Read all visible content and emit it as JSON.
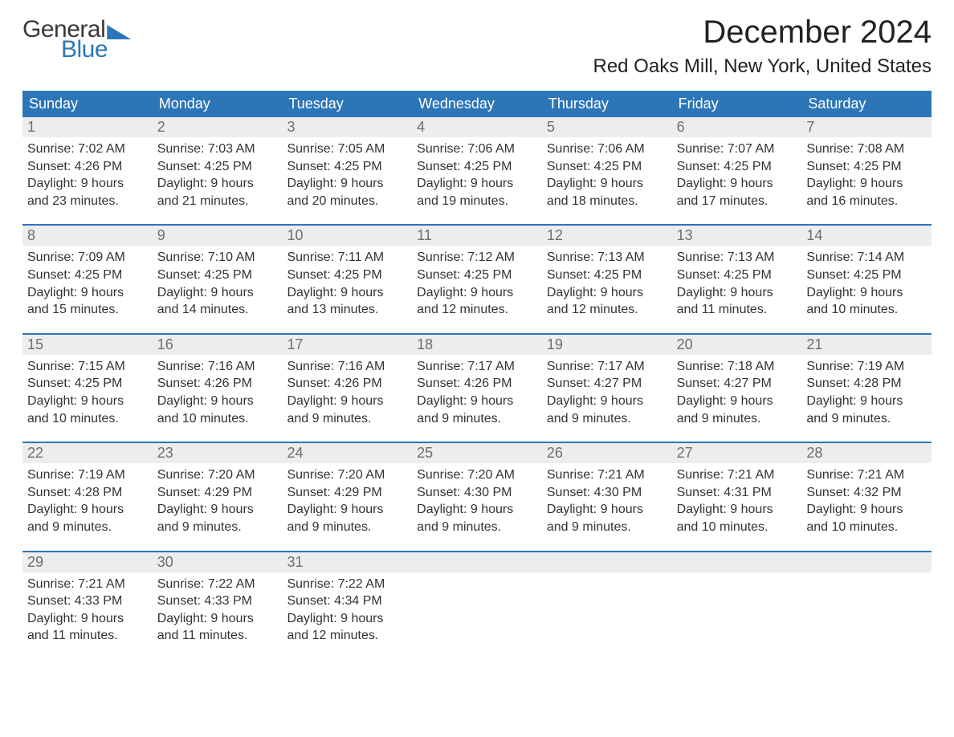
{
  "logo": {
    "word1": "General",
    "word2": "Blue"
  },
  "header": {
    "month_title": "December 2024",
    "location": "Red Oaks Mill, New York, United States"
  },
  "colors": {
    "brand_blue": "#2c76b8",
    "row_gray": "#ededed",
    "text_dark": "#333333",
    "daynum_gray": "#6e6e6e",
    "white": "#ffffff"
  },
  "typography": {
    "month_title_fontsize": 40,
    "location_fontsize": 24,
    "dow_fontsize": 18,
    "daynum_fontsize": 18,
    "body_fontsize": 16
  },
  "days_of_week": [
    "Sunday",
    "Monday",
    "Tuesday",
    "Wednesday",
    "Thursday",
    "Friday",
    "Saturday"
  ],
  "weeks": [
    [
      {
        "n": "1",
        "sunrise": "Sunrise: 7:02 AM",
        "sunset": "Sunset: 4:26 PM",
        "dl1": "Daylight: 9 hours",
        "dl2": "and 23 minutes."
      },
      {
        "n": "2",
        "sunrise": "Sunrise: 7:03 AM",
        "sunset": "Sunset: 4:25 PM",
        "dl1": "Daylight: 9 hours",
        "dl2": "and 21 minutes."
      },
      {
        "n": "3",
        "sunrise": "Sunrise: 7:05 AM",
        "sunset": "Sunset: 4:25 PM",
        "dl1": "Daylight: 9 hours",
        "dl2": "and 20 minutes."
      },
      {
        "n": "4",
        "sunrise": "Sunrise: 7:06 AM",
        "sunset": "Sunset: 4:25 PM",
        "dl1": "Daylight: 9 hours",
        "dl2": "and 19 minutes."
      },
      {
        "n": "5",
        "sunrise": "Sunrise: 7:06 AM",
        "sunset": "Sunset: 4:25 PM",
        "dl1": "Daylight: 9 hours",
        "dl2": "and 18 minutes."
      },
      {
        "n": "6",
        "sunrise": "Sunrise: 7:07 AM",
        "sunset": "Sunset: 4:25 PM",
        "dl1": "Daylight: 9 hours",
        "dl2": "and 17 minutes."
      },
      {
        "n": "7",
        "sunrise": "Sunrise: 7:08 AM",
        "sunset": "Sunset: 4:25 PM",
        "dl1": "Daylight: 9 hours",
        "dl2": "and 16 minutes."
      }
    ],
    [
      {
        "n": "8",
        "sunrise": "Sunrise: 7:09 AM",
        "sunset": "Sunset: 4:25 PM",
        "dl1": "Daylight: 9 hours",
        "dl2": "and 15 minutes."
      },
      {
        "n": "9",
        "sunrise": "Sunrise: 7:10 AM",
        "sunset": "Sunset: 4:25 PM",
        "dl1": "Daylight: 9 hours",
        "dl2": "and 14 minutes."
      },
      {
        "n": "10",
        "sunrise": "Sunrise: 7:11 AM",
        "sunset": "Sunset: 4:25 PM",
        "dl1": "Daylight: 9 hours",
        "dl2": "and 13 minutes."
      },
      {
        "n": "11",
        "sunrise": "Sunrise: 7:12 AM",
        "sunset": "Sunset: 4:25 PM",
        "dl1": "Daylight: 9 hours",
        "dl2": "and 12 minutes."
      },
      {
        "n": "12",
        "sunrise": "Sunrise: 7:13 AM",
        "sunset": "Sunset: 4:25 PM",
        "dl1": "Daylight: 9 hours",
        "dl2": "and 12 minutes."
      },
      {
        "n": "13",
        "sunrise": "Sunrise: 7:13 AM",
        "sunset": "Sunset: 4:25 PM",
        "dl1": "Daylight: 9 hours",
        "dl2": "and 11 minutes."
      },
      {
        "n": "14",
        "sunrise": "Sunrise: 7:14 AM",
        "sunset": "Sunset: 4:25 PM",
        "dl1": "Daylight: 9 hours",
        "dl2": "and 10 minutes."
      }
    ],
    [
      {
        "n": "15",
        "sunrise": "Sunrise: 7:15 AM",
        "sunset": "Sunset: 4:25 PM",
        "dl1": "Daylight: 9 hours",
        "dl2": "and 10 minutes."
      },
      {
        "n": "16",
        "sunrise": "Sunrise: 7:16 AM",
        "sunset": "Sunset: 4:26 PM",
        "dl1": "Daylight: 9 hours",
        "dl2": "and 10 minutes."
      },
      {
        "n": "17",
        "sunrise": "Sunrise: 7:16 AM",
        "sunset": "Sunset: 4:26 PM",
        "dl1": "Daylight: 9 hours",
        "dl2": "and 9 minutes."
      },
      {
        "n": "18",
        "sunrise": "Sunrise: 7:17 AM",
        "sunset": "Sunset: 4:26 PM",
        "dl1": "Daylight: 9 hours",
        "dl2": "and 9 minutes."
      },
      {
        "n": "19",
        "sunrise": "Sunrise: 7:17 AM",
        "sunset": "Sunset: 4:27 PM",
        "dl1": "Daylight: 9 hours",
        "dl2": "and 9 minutes."
      },
      {
        "n": "20",
        "sunrise": "Sunrise: 7:18 AM",
        "sunset": "Sunset: 4:27 PM",
        "dl1": "Daylight: 9 hours",
        "dl2": "and 9 minutes."
      },
      {
        "n": "21",
        "sunrise": "Sunrise: 7:19 AM",
        "sunset": "Sunset: 4:28 PM",
        "dl1": "Daylight: 9 hours",
        "dl2": "and 9 minutes."
      }
    ],
    [
      {
        "n": "22",
        "sunrise": "Sunrise: 7:19 AM",
        "sunset": "Sunset: 4:28 PM",
        "dl1": "Daylight: 9 hours",
        "dl2": "and 9 minutes."
      },
      {
        "n": "23",
        "sunrise": "Sunrise: 7:20 AM",
        "sunset": "Sunset: 4:29 PM",
        "dl1": "Daylight: 9 hours",
        "dl2": "and 9 minutes."
      },
      {
        "n": "24",
        "sunrise": "Sunrise: 7:20 AM",
        "sunset": "Sunset: 4:29 PM",
        "dl1": "Daylight: 9 hours",
        "dl2": "and 9 minutes."
      },
      {
        "n": "25",
        "sunrise": "Sunrise: 7:20 AM",
        "sunset": "Sunset: 4:30 PM",
        "dl1": "Daylight: 9 hours",
        "dl2": "and 9 minutes."
      },
      {
        "n": "26",
        "sunrise": "Sunrise: 7:21 AM",
        "sunset": "Sunset: 4:30 PM",
        "dl1": "Daylight: 9 hours",
        "dl2": "and 9 minutes."
      },
      {
        "n": "27",
        "sunrise": "Sunrise: 7:21 AM",
        "sunset": "Sunset: 4:31 PM",
        "dl1": "Daylight: 9 hours",
        "dl2": "and 10 minutes."
      },
      {
        "n": "28",
        "sunrise": "Sunrise: 7:21 AM",
        "sunset": "Sunset: 4:32 PM",
        "dl1": "Daylight: 9 hours",
        "dl2": "and 10 minutes."
      }
    ],
    [
      {
        "n": "29",
        "sunrise": "Sunrise: 7:21 AM",
        "sunset": "Sunset: 4:33 PM",
        "dl1": "Daylight: 9 hours",
        "dl2": "and 11 minutes."
      },
      {
        "n": "30",
        "sunrise": "Sunrise: 7:22 AM",
        "sunset": "Sunset: 4:33 PM",
        "dl1": "Daylight: 9 hours",
        "dl2": "and 11 minutes."
      },
      {
        "n": "31",
        "sunrise": "Sunrise: 7:22 AM",
        "sunset": "Sunset: 4:34 PM",
        "dl1": "Daylight: 9 hours",
        "dl2": "and 12 minutes."
      },
      {
        "empty": true
      },
      {
        "empty": true
      },
      {
        "empty": true
      },
      {
        "empty": true
      }
    ]
  ]
}
